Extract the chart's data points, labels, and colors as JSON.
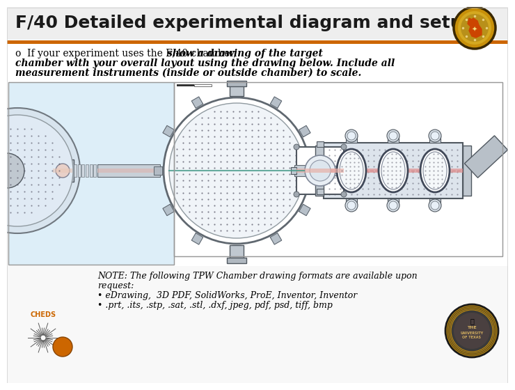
{
  "title": "F/40 Detailed experimental diagram and setup",
  "title_fontsize": 18,
  "title_color": "#1a1a1a",
  "bg_color": "#ffffff",
  "header_bar_color": "#CC6600",
  "bullet_normal": "o  If your experiment uses the F/40 chamber, ",
  "bullet_italic_1": "show a drawing of the target",
  "bullet_italic_2": "chamber with your overall layout using the drawing below. Include all",
  "bullet_italic_3": "measurement instruments (inside or outside chamber) to scale.",
  "note_line1": "NOTE: The following TPW Chamber drawing formats are available upon",
  "note_line2": "request:",
  "note_line3": "• eDrawing,  3D PDF, SolidWorks, ProE, Inventor, Inventor",
  "note_line4": "• .prt, .its, .stp, .sat, .stl, .dxf, jpeg, pdf, psd, tiff, bmp",
  "note_fontsize": 9,
  "cheds_color": "#CC6600",
  "slide_bg": "#ffffff",
  "img_bg_left": "#ddeef8",
  "img_bg_right": "#f5f8fa",
  "img_border": "#aaaaaa",
  "chamber_fill": "#e8eef2",
  "chamber_edge": "#606870",
  "tube_fill": "#d8dfe6",
  "tube_edge": "#505860",
  "dot_color": "#555566",
  "beam_red": "#dd5555",
  "beam_teal": "#449988"
}
